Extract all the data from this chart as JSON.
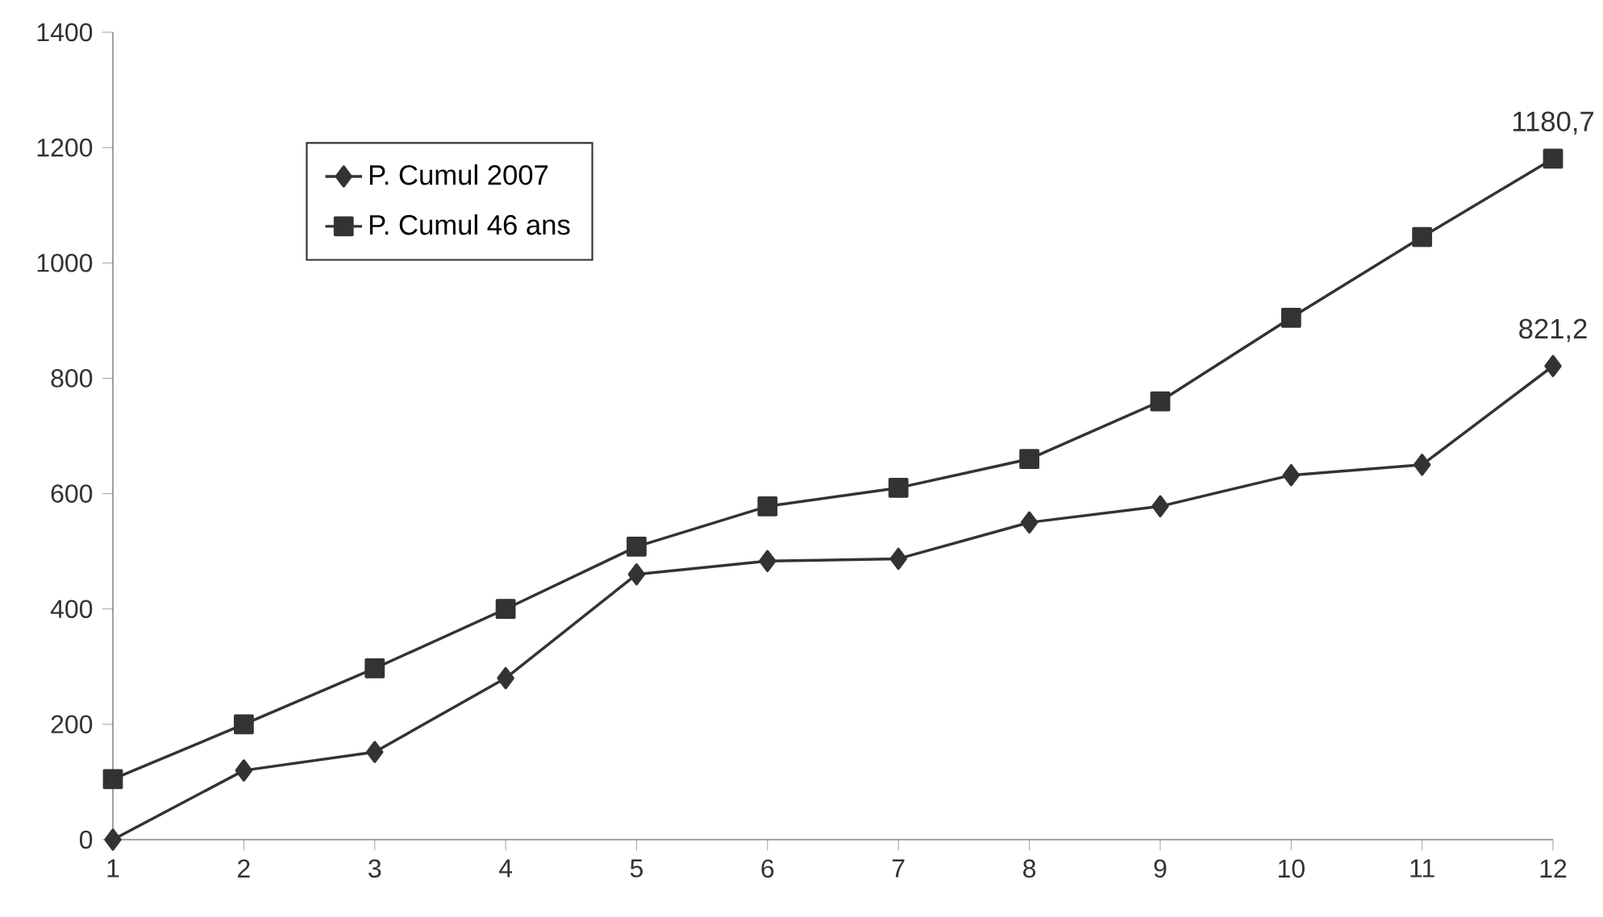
{
  "chart_data": {
    "type": "line",
    "x": [
      1,
      2,
      3,
      4,
      5,
      6,
      7,
      8,
      9,
      10,
      11,
      12
    ],
    "series": [
      {
        "name": "P. Cumul 2007",
        "color": "#333333",
        "marker": "diamond",
        "values": [
          0,
          120,
          152,
          280,
          460,
          483,
          487,
          550,
          578,
          632,
          650,
          821.2
        ],
        "value_labels": [
          null,
          null,
          null,
          null,
          null,
          null,
          null,
          null,
          null,
          null,
          null,
          "821,2"
        ]
      },
      {
        "name": "P. Cumul 46 ans",
        "color": "#333333",
        "marker": "square",
        "values": [
          105,
          200,
          297,
          400,
          508,
          578,
          610,
          660,
          760,
          905,
          1045,
          1180.7
        ],
        "value_labels": [
          null,
          null,
          null,
          null,
          null,
          null,
          null,
          null,
          null,
          null,
          null,
          "1180,7"
        ]
      }
    ],
    "xlim": [
      1,
      12
    ],
    "xticks": [
      1,
      2,
      3,
      4,
      5,
      6,
      7,
      8,
      9,
      10,
      11,
      12
    ],
    "ylim": [
      0,
      1400
    ],
    "yticks": [
      0,
      200,
      400,
      600,
      800,
      1000,
      1200,
      1400
    ],
    "grid": false,
    "legend": "top left",
    "line_style": "solid"
  }
}
